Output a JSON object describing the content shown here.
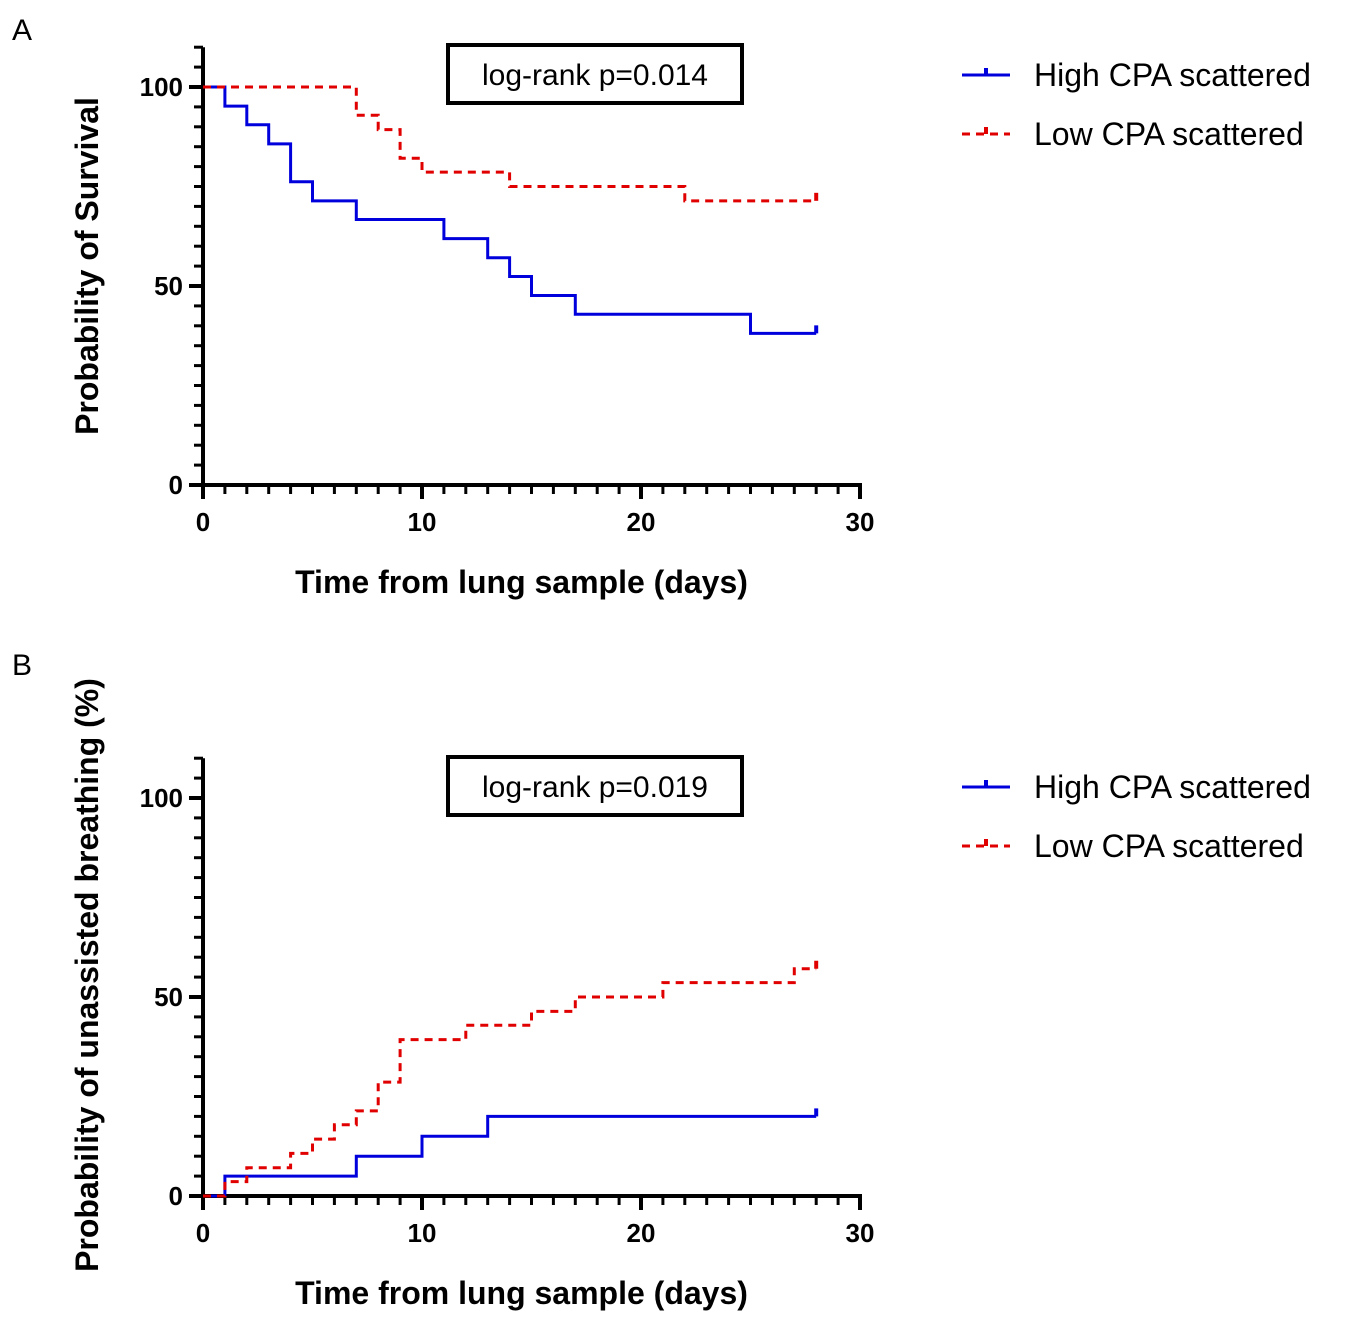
{
  "chart_data": [
    {
      "type": "line",
      "subtype": "kaplan-meier-step",
      "panel_label": "A",
      "annotation": "log-rank p=0.014",
      "xlabel": "Time from lung sample (days)",
      "ylabel": "Probability of Survival",
      "xlim": [
        0,
        30
      ],
      "ylim": [
        0,
        110
      ],
      "xticks": [
        "0",
        "10",
        "20",
        "30"
      ],
      "yticks": [
        "0",
        "50",
        "100"
      ],
      "legend_position": "right",
      "series": [
        {
          "name": "High CPA scattered",
          "color": "#0000dd",
          "dashed": false,
          "x": [
            0,
            1,
            2,
            3,
            4,
            5,
            7,
            11,
            13,
            14,
            15,
            17,
            25,
            28
          ],
          "y": [
            100,
            95.2,
            90.5,
            85.7,
            76.2,
            71.4,
            66.7,
            61.9,
            57.1,
            52.4,
            47.6,
            42.9,
            38.1,
            38.1
          ]
        },
        {
          "name": "Low CPA scattered",
          "color": "#e00000",
          "dashed": true,
          "x": [
            0,
            7,
            8,
            9,
            10,
            14,
            22,
            28
          ],
          "y": [
            100,
            92.9,
            89.3,
            82.1,
            78.6,
            75,
            71.4,
            71.4
          ]
        }
      ]
    },
    {
      "type": "line",
      "subtype": "kaplan-meier-step",
      "panel_label": "B",
      "annotation": "log-rank p=0.019",
      "xlabel": "Time from lung sample (days)",
      "ylabel": "Probability of unassisted breathing (%)",
      "xlim": [
        0,
        30
      ],
      "ylim": [
        0,
        110
      ],
      "xticks": [
        "0",
        "10",
        "20",
        "30"
      ],
      "yticks": [
        "0",
        "50",
        "100"
      ],
      "legend_position": "right",
      "series": [
        {
          "name": "High CPA scattered",
          "color": "#0000dd",
          "dashed": false,
          "x": [
            0,
            1,
            7,
            10,
            13,
            28
          ],
          "y": [
            0,
            5,
            10,
            15,
            20,
            20
          ]
        },
        {
          "name": "Low CPA scattered",
          "color": "#e00000",
          "dashed": true,
          "x": [
            0,
            1,
            2,
            4,
            5,
            6,
            7,
            8,
            9,
            12,
            15,
            17,
            21,
            27,
            28
          ],
          "y": [
            0,
            3.6,
            7.1,
            10.7,
            14.3,
            17.9,
            21.4,
            28.6,
            39.3,
            42.9,
            46.4,
            50,
            53.6,
            57.1,
            57.1
          ]
        }
      ]
    }
  ]
}
